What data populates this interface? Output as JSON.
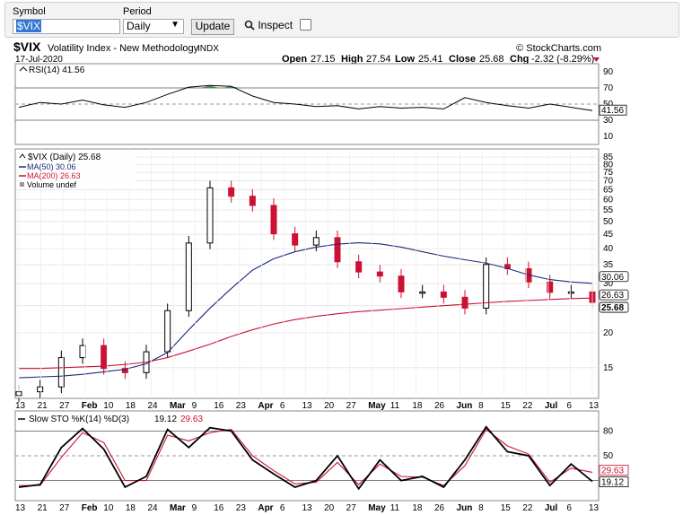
{
  "form": {
    "symbol_label": "Symbol",
    "symbol_value": "$VIX",
    "period_label": "Period",
    "period_value": "Daily",
    "update_label": "Update",
    "inspect_label": "Inspect"
  },
  "chart_header": {
    "ticker": "$VIX",
    "name": "Volatility Index - New Methodology",
    "exchange": "INDX",
    "copyright": "© StockCharts.com",
    "date": "17-Jul-2020",
    "open_label": "Open",
    "open": "27.15",
    "high_label": "High",
    "high": "27.54",
    "low_label": "Low",
    "low": "25.41",
    "close_label": "Close",
    "close": "25.68",
    "chg_label": "Chg",
    "chg": "-2.32 (-8.29%)",
    "down_icon": "triangle-down-icon",
    "colors": {
      "up": "#000000",
      "down": "#cc1133",
      "ma50": "#1a2a7a",
      "ma200": "#cc1133",
      "rsi_fill": "#3a7a3a"
    }
  },
  "chart_data": [
    {
      "type": "line",
      "panel": "rsi",
      "legend": "RSI(14) 41.56",
      "y_ticks": [
        90,
        70,
        50,
        30,
        10
      ],
      "last_value_label": "41.56",
      "ylim": [
        0,
        100
      ],
      "x": [
        "Jan 13",
        "Jan 21",
        "Jan 27",
        "Feb 3",
        "Feb 10",
        "Feb 18",
        "Feb 24",
        "Mar 2",
        "Mar 9",
        "Mar 16",
        "Mar 23",
        "Mar 30",
        "Apr 6",
        "Apr 13",
        "Apr 20",
        "Apr 27",
        "May 4",
        "May 11",
        "May 18",
        "May 26",
        "Jun 1",
        "Jun 8",
        "Jun 15",
        "Jun 22",
        "Jun 29",
        "Jul 6",
        "Jul 13",
        "Jul 17"
      ],
      "values": [
        46,
        52,
        50,
        55,
        49,
        46,
        52,
        62,
        71,
        73,
        72,
        60,
        52,
        50,
        47,
        48,
        44,
        47,
        45,
        46,
        44,
        58,
        52,
        48,
        45,
        50,
        46,
        42
      ]
    },
    {
      "type": "line",
      "panel": "price",
      "legend": {
        "symbol": "$VIX (Daily) 25.68",
        "ma50": "MA(50) 30.06",
        "ma200": "MA(200) 26.63",
        "volume": "Volume undef"
      },
      "y_ticks": [
        85,
        80,
        75,
        70,
        65,
        60,
        55,
        50,
        45,
        40,
        35,
        30,
        25,
        20,
        15
      ],
      "ylim": [
        12,
        87
      ],
      "last_labels": {
        "ma50": "30.06",
        "ma200": "26.63",
        "close": "25.68"
      },
      "x": [
        "Jan 13",
        "Jan 21",
        "Jan 27",
        "Feb 3",
        "Feb 10",
        "Feb 18",
        "Feb 24",
        "Mar 2",
        "Mar 9",
        "Mar 16",
        "Mar 23",
        "Mar 30",
        "Apr 6",
        "Apr 13",
        "Apr 20",
        "Apr 27",
        "May 4",
        "May 11",
        "May 18",
        "May 26",
        "Jun 1",
        "Jun 8",
        "Jun 15",
        "Jun 22",
        "Jun 29",
        "Jul 6",
        "Jul 13",
        "Jul 17"
      ],
      "series": [
        {
          "name": "$VIX",
          "values": [
            12.3,
            12.8,
            16.3,
            18.0,
            14.9,
            14.4,
            17.1,
            24.0,
            41.9,
            66.0,
            61.6,
            57.1,
            45.2,
            41.2,
            43.8,
            35.9,
            33.0,
            31.9,
            28.0,
            28.0,
            26.8,
            24.5,
            35.1,
            33.9,
            30.4,
            27.9,
            28.0,
            25.68
          ]
        },
        {
          "name": "MA(50)",
          "values": [
            13.8,
            13.9,
            14.0,
            14.2,
            14.5,
            14.8,
            15.5,
            17.0,
            20.5,
            24.5,
            28.8,
            33.5,
            36.8,
            39.0,
            40.5,
            41.5,
            42.0,
            41.6,
            40.5,
            39.0,
            37.6,
            36.5,
            35.5,
            34.0,
            32.2,
            31.0,
            30.4,
            30.06
          ]
        },
        {
          "name": "MA(200)",
          "values": [
            14.9,
            14.9,
            15.0,
            15.1,
            15.2,
            15.4,
            15.7,
            16.3,
            17.2,
            18.2,
            19.4,
            20.5,
            21.5,
            22.3,
            22.9,
            23.4,
            23.8,
            24.1,
            24.4,
            24.7,
            25.0,
            25.3,
            25.6,
            25.9,
            26.1,
            26.3,
            26.5,
            26.63
          ]
        }
      ]
    },
    {
      "type": "line",
      "panel": "stochastic",
      "legend": {
        "main": "Slow STO %K(14) %D(3)",
        "k": "19.12",
        "d": "29.63"
      },
      "y_ticks": [
        80,
        50,
        20
      ],
      "ylim": [
        0,
        100
      ],
      "last_labels": {
        "d": "29.63",
        "k": "19.12"
      },
      "x": [
        "Jan 13",
        "Jan 21",
        "Jan 27",
        "Feb 3",
        "Feb 10",
        "Feb 18",
        "Feb 24",
        "Mar 2",
        "Mar 9",
        "Mar 16",
        "Mar 23",
        "Mar 30",
        "Apr 6",
        "Apr 13",
        "Apr 20",
        "Apr 27",
        "May 4",
        "May 11",
        "May 18",
        "May 26",
        "Jun 1",
        "Jun 8",
        "Jun 15",
        "Jun 22",
        "Jun 29",
        "Jul 6",
        "Jul 13",
        "Jul 17"
      ],
      "series": [
        {
          "name": "%K",
          "values": [
            12,
            15,
            60,
            83,
            58,
            12,
            25,
            82,
            60,
            84,
            80,
            45,
            28,
            12,
            20,
            50,
            10,
            45,
            20,
            25,
            12,
            45,
            85,
            55,
            50,
            14,
            40,
            19
          ]
        },
        {
          "name": "%D",
          "values": [
            14,
            14,
            48,
            78,
            66,
            20,
            20,
            75,
            68,
            78,
            82,
            50,
            32,
            16,
            18,
            42,
            15,
            40,
            25,
            24,
            14,
            38,
            82,
            62,
            52,
            18,
            35,
            30
          ]
        }
      ]
    }
  ],
  "x_axis_labels": [
    "13",
    "21",
    "27",
    "Feb",
    "10",
    "18",
    "24",
    "Mar",
    "9",
    "16",
    "23",
    "Apr",
    "6",
    "13",
    "20",
    "27",
    "May",
    "11",
    "18",
    "26",
    "Jun",
    "8",
    "15",
    "22",
    "Jul",
    "6",
    "13"
  ]
}
